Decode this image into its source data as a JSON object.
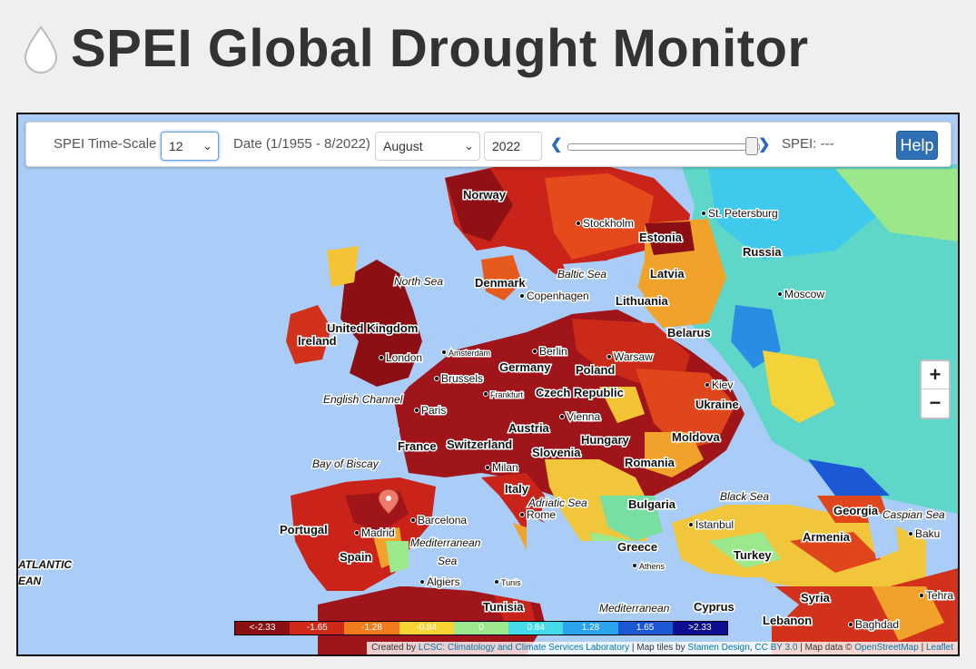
{
  "header": {
    "title": "SPEI Global Drought Monitor",
    "icon": "water-drop-icon"
  },
  "controls": {
    "timescale_label": "SPEI Time-Scale",
    "timescale_value": "12",
    "date_label": "Date (1/1955 - 8/2022)",
    "month_value": "August",
    "year_value": "2022",
    "date_progress_fraction": 0.99,
    "spei_readout": "SPEI: ---",
    "help_label": "Help",
    "prev_icon": "chevron-left-icon",
    "next_icon": "chevron-right-icon"
  },
  "zoom": {
    "in_label": "+",
    "out_label": "−"
  },
  "legend": {
    "items": [
      {
        "label": "<-2.33",
        "color": "#8b0f13"
      },
      {
        "label": "-1.65",
        "color": "#cf2a17"
      },
      {
        "label": "-1.28",
        "color": "#f27a1e"
      },
      {
        "label": "-0.84",
        "color": "#f8d134"
      },
      {
        "label": "0",
        "color": "#9ce88c"
      },
      {
        "label": "0.84",
        "color": "#44dcea"
      },
      {
        "label": "1.28",
        "color": "#2aa2ee"
      },
      {
        "label": "1.65",
        "color": "#1b58d6"
      },
      {
        "label": ">2.33",
        "color": "#0d0f90"
      }
    ]
  },
  "attribution": {
    "created_by": "Created by",
    "lab": "LCSC: Climatology and Climate Services Laboratory",
    "tiles_text": "| Map tiles by",
    "stamen": "Stamen Design",
    "cc": "CC BY 3.0",
    "data_text": "| Map data ©",
    "osm": "OpenStreetMap",
    "sep": "|",
    "leaflet": "Leaflet"
  },
  "map_labels": {
    "countries": [
      "Norway",
      "Estonia",
      "Russia",
      "Latvia",
      "Denmark",
      "Lithuania",
      "United Kingdom",
      "Ireland",
      "Belarus",
      "Germany",
      "Poland",
      "Czech Republic",
      "Ukraine",
      "Austria",
      "France",
      "Switzerland",
      "Hungary",
      "Moldova",
      "Slovenia",
      "Romania",
      "Italy",
      "Bulgaria",
      "Georgia",
      "Portugal",
      "Spain",
      "Greece",
      "Armenia",
      "Turkey",
      "Tunisia",
      "Cyprus",
      "Syria",
      "Lebanon"
    ],
    "seas": [
      "North Sea",
      "Baltic Sea",
      "English Channel",
      "Bay of Biscay",
      "Adriatic Sea",
      "Black Sea",
      "Caspian Sea",
      "Mediterranean Sea",
      "Mediterranean",
      "ATLANTIC EAN"
    ],
    "cities": [
      "Stockholm",
      "St. Petersburg",
      "Moscow",
      "Copenhagen",
      "London",
      "Amsterdam",
      "Berlin",
      "Warsaw",
      "Brussels",
      "Frankfurt",
      "Paris",
      "Kiev",
      "Vienna",
      "Milan",
      "Barcelona",
      "Madrid",
      "Rome",
      "Istanbul",
      "Baku",
      "Athens",
      "Algiers",
      "Tunis",
      "Baghdad",
      "Tehra"
    ]
  },
  "colors": {
    "title_text": "#333333",
    "water": "#a9cdf7",
    "help_button": "#2f6fb5",
    "marker": "#f07a6a"
  }
}
